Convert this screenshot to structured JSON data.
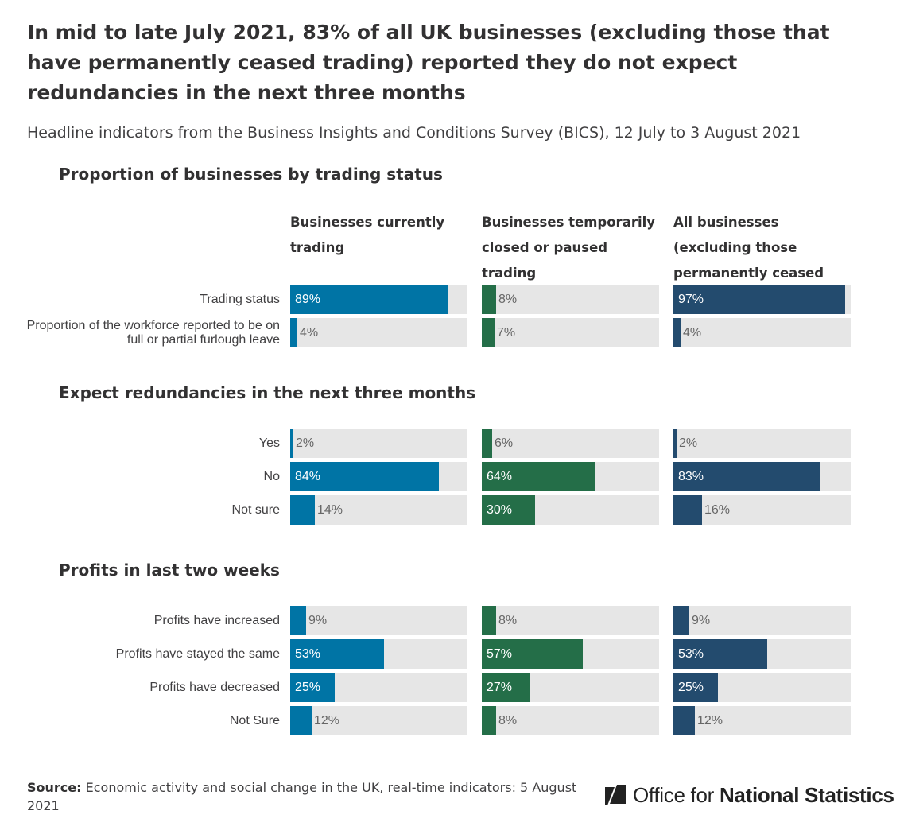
{
  "title": "In mid to late July 2021, 83% of all UK businesses (excluding those that have permanently ceased trading) reported they do not expect redundancies in the next three months",
  "subtitle": "Headline indicators from the Business Insights and Conditions Survey (BICS), 12 July to 3 August 2021",
  "source": {
    "label": "Source:",
    "text": "Economic activity and social change in the UK, real-time indicators: 5 August 2021"
  },
  "logo": {
    "regular": "Office for",
    "bold": "National Statistics"
  },
  "chart_data": {
    "type": "bar",
    "orientation": "horizontal",
    "xlim": [
      0,
      100
    ],
    "unit": "%",
    "columns": [
      {
        "name": "Businesses currently trading",
        "color": "#0074a5"
      },
      {
        "name": "Businesses temporarily closed or paused trading",
        "color": "#246e48"
      },
      {
        "name": "All businesses (excluding those permanently ceased trading)",
        "color": "#234b6e"
      }
    ],
    "panels": [
      {
        "title": "Proportion of businesses by trading status",
        "categories": [
          "Trading status",
          "Proportion of the workforce reported to be on full or partial furlough leave"
        ],
        "values": [
          [
            89,
            8,
            97
          ],
          [
            4,
            7,
            4
          ]
        ]
      },
      {
        "title": "Expect redundancies in the next three months",
        "categories": [
          "Yes",
          "No",
          "Not sure"
        ],
        "values": [
          [
            2,
            6,
            2
          ],
          [
            84,
            64,
            83
          ],
          [
            14,
            30,
            16
          ]
        ]
      },
      {
        "title": "Profits in last two weeks",
        "categories": [
          "Profits have increased",
          "Profits have stayed the same",
          "Profits have decreased",
          "Not Sure"
        ],
        "values": [
          [
            9,
            8,
            9
          ],
          [
            53,
            57,
            53
          ],
          [
            25,
            27,
            25
          ],
          [
            12,
            8,
            12
          ]
        ]
      }
    ]
  }
}
